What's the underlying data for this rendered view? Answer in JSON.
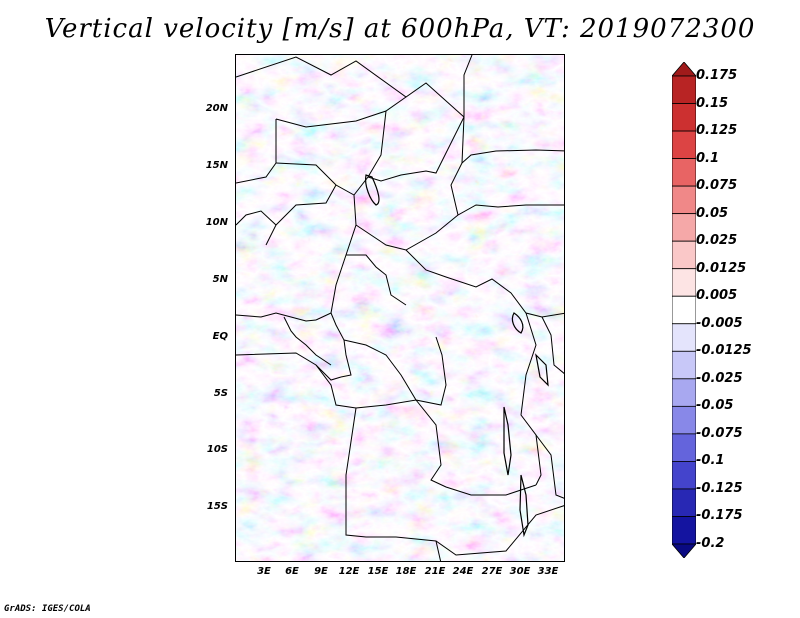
{
  "title": "Vertical velocity [m/s] at 600hPa, VT: 2019072300",
  "credit": "GrADS: IGES/COLA",
  "lat_labels": [
    "20N",
    "15N",
    "10N",
    "5N",
    "EQ",
    "5S",
    "10S",
    "15S"
  ],
  "lon_labels": [
    "3E",
    "6E",
    "9E",
    "12E",
    "15E",
    "18E",
    "21E",
    "24E",
    "27E",
    "30E",
    "33E"
  ],
  "colorbar": {
    "labels": [
      "0.175",
      "0.15",
      "0.125",
      "0.1",
      "0.075",
      "0.05",
      "0.025",
      "0.0125",
      "0.005",
      "-0.005",
      "-0.0125",
      "-0.025",
      "-0.05",
      "-0.075",
      "-0.1",
      "-0.125",
      "-0.175",
      "-0.2"
    ],
    "colors": [
      "#a01b1b",
      "#b82424",
      "#cc3030",
      "#dc4444",
      "#e86464",
      "#f08888",
      "#f5a8a8",
      "#fac8c8",
      "#fde4e4",
      "#ffffff",
      "#e4e4fc",
      "#c8c8f8",
      "#a8a8f0",
      "#8888e8",
      "#6464dc",
      "#4444cc",
      "#2828b4",
      "#1414a0",
      "#0a0a82"
    ]
  }
}
